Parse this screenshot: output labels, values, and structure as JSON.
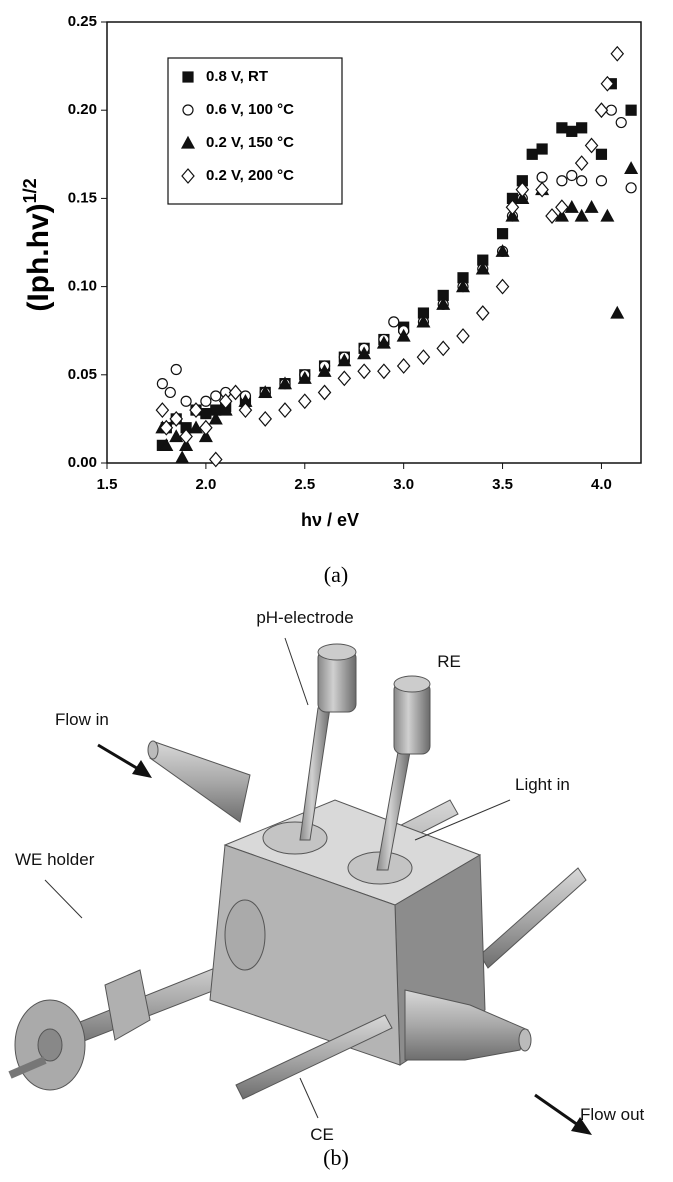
{
  "chart_data": {
    "type": "scatter",
    "xlabel": "hν / eV",
    "ylabel": "(Iph.hv)",
    "ylabel_sup": "1/2",
    "xlim": [
      1.5,
      4.2
    ],
    "ylim": [
      0,
      0.25
    ],
    "xticks": [
      1.5,
      {
        "value": 2,
        "label": "2.0"
      },
      2.5,
      {
        "value": 3,
        "label": "3.0"
      },
      3.5,
      {
        "value": 4,
        "label": "4.0"
      }
    ],
    "yticks": [
      {
        "value": 0,
        "label": "0.00"
      },
      {
        "value": 0.05,
        "label": "0.05"
      },
      {
        "value": 0.1,
        "label": "0.10"
      },
      {
        "value": 0.15,
        "label": "0.15"
      },
      {
        "value": 0.2,
        "label": "0.20"
      },
      {
        "value": 0.25,
        "label": "0.25"
      }
    ],
    "legend": "upper left",
    "series": [
      {
        "name": "0.8 V, RT",
        "marker": "square",
        "filled": true,
        "color": "#111111",
        "x": [
          1.78,
          1.8,
          1.85,
          1.9,
          1.95,
          2.0,
          2.05,
          2.1,
          2.2,
          2.3,
          2.4,
          2.5,
          2.6,
          2.7,
          2.8,
          2.9,
          3.0,
          3.1,
          3.2,
          3.3,
          3.4,
          3.5,
          3.55,
          3.6,
          3.65,
          3.7,
          3.8,
          3.85,
          3.9,
          4.0,
          4.05,
          4.15
        ],
        "values": [
          0.01,
          0.02,
          0.025,
          0.02,
          0.03,
          0.028,
          0.03,
          0.032,
          0.035,
          0.04,
          0.045,
          0.05,
          0.055,
          0.06,
          0.065,
          0.07,
          0.077,
          0.085,
          0.095,
          0.105,
          0.115,
          0.13,
          0.15,
          0.16,
          0.175,
          0.178,
          0.19,
          0.188,
          0.19,
          0.175,
          0.215,
          0.2
        ]
      },
      {
        "name": "0.6 V, 100 °C",
        "marker": "circle",
        "filled": false,
        "color": "#111111",
        "x": [
          1.78,
          1.82,
          1.85,
          1.9,
          1.95,
          2.0,
          2.05,
          2.1,
          2.2,
          2.3,
          2.4,
          2.5,
          2.6,
          2.7,
          2.8,
          2.9,
          2.95,
          3.0,
          3.1,
          3.2,
          3.3,
          3.4,
          3.5,
          3.55,
          3.6,
          3.7,
          3.8,
          3.85,
          3.9,
          4.0,
          4.05,
          4.1,
          4.15
        ],
        "values": [
          0.045,
          0.04,
          0.053,
          0.035,
          0.03,
          0.035,
          0.038,
          0.04,
          0.038,
          0.04,
          0.045,
          0.05,
          0.055,
          0.06,
          0.065,
          0.07,
          0.08,
          0.075,
          0.08,
          0.09,
          0.1,
          0.11,
          0.12,
          0.14,
          0.15,
          0.162,
          0.16,
          0.163,
          0.16,
          0.16,
          0.2,
          0.193,
          0.156
        ]
      },
      {
        "name": "0.2 V, 150 °C",
        "marker": "triangle",
        "filled": true,
        "color": "#111111",
        "x": [
          1.78,
          1.8,
          1.85,
          1.88,
          1.9,
          1.95,
          2.0,
          2.05,
          2.1,
          2.2,
          2.3,
          2.4,
          2.5,
          2.6,
          2.7,
          2.8,
          2.9,
          3.0,
          3.1,
          3.2,
          3.3,
          3.4,
          3.5,
          3.55,
          3.6,
          3.7,
          3.8,
          3.85,
          3.9,
          3.95,
          4.03,
          4.08,
          4.15
        ],
        "values": [
          0.02,
          0.01,
          0.015,
          0.003,
          0.01,
          0.02,
          0.015,
          0.025,
          0.03,
          0.035,
          0.04,
          0.045,
          0.048,
          0.052,
          0.058,
          0.062,
          0.068,
          0.072,
          0.08,
          0.09,
          0.1,
          0.11,
          0.12,
          0.14,
          0.15,
          0.155,
          0.14,
          0.145,
          0.14,
          0.145,
          0.14,
          0.085,
          0.167
        ]
      },
      {
        "name": "0.2 V, 200 °C",
        "marker": "diamond",
        "filled": false,
        "color": "#111111",
        "x": [
          1.78,
          1.8,
          1.85,
          1.9,
          1.95,
          2.0,
          2.05,
          2.1,
          2.15,
          2.2,
          2.3,
          2.4,
          2.5,
          2.6,
          2.7,
          2.8,
          2.9,
          3.0,
          3.1,
          3.2,
          3.3,
          3.4,
          3.5,
          3.55,
          3.6,
          3.7,
          3.75,
          3.8,
          3.9,
          3.95,
          4.0,
          4.03,
          4.08
        ],
        "values": [
          0.03,
          0.02,
          0.025,
          0.015,
          0.03,
          0.02,
          0.002,
          0.035,
          0.04,
          0.03,
          0.025,
          0.03,
          0.035,
          0.04,
          0.048,
          0.052,
          0.052,
          0.055,
          0.06,
          0.065,
          0.072,
          0.085,
          0.1,
          0.145,
          0.155,
          0.155,
          0.14,
          0.145,
          0.17,
          0.18,
          0.2,
          0.215,
          0.232
        ]
      }
    ]
  },
  "caption_a": "(a)",
  "diagram": {
    "labels": [
      "pH-electrode",
      "RE",
      "Flow in",
      "Light in",
      "WE holder",
      "CE",
      "Flow out"
    ],
    "caption": "(b)"
  }
}
